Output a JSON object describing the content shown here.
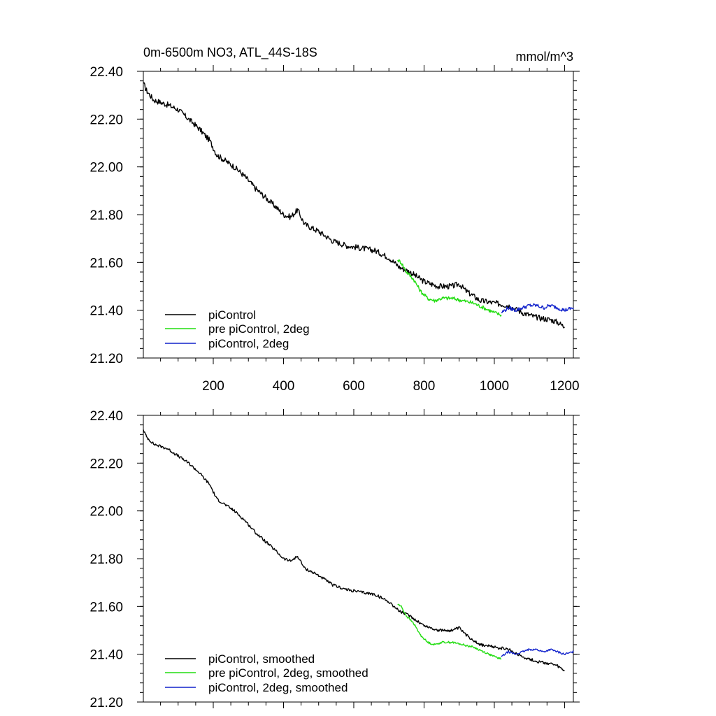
{
  "chart_data": [
    {
      "type": "line",
      "title": "0m-6500m NO3, ATL_44S-18S",
      "units": "mmol/m^3",
      "xlim": [
        1,
        1225
      ],
      "ylim": [
        21.2,
        22.4
      ],
      "x_ticks": [
        200,
        400,
        600,
        800,
        1000,
        1200
      ],
      "x_tick_labels": [
        "200",
        "400",
        "600",
        "800",
        "1000",
        "1200"
      ],
      "y_ticks": [
        21.2,
        21.4,
        21.6,
        21.8,
        22.0,
        22.2,
        22.4
      ],
      "y_tick_labels": [
        "21.20",
        "21.40",
        "21.60",
        "21.80",
        "22.00",
        "22.20",
        "22.40"
      ],
      "legend_position": "bottom-left",
      "series": [
        {
          "name": "piControl",
          "color": "#000000",
          "noise": 0.012,
          "x": [
            1,
            10,
            30,
            50,
            70,
            100,
            130,
            160,
            190,
            210,
            230,
            260,
            290,
            320,
            350,
            380,
            400,
            420,
            440,
            460,
            500,
            540,
            580,
            620,
            660,
            700,
            730,
            760,
            800,
            840,
            880,
            900,
            920,
            960,
            1000,
            1040,
            1080,
            1120,
            1160,
            1180,
            1200
          ],
          "y": [
            22.35,
            22.32,
            22.28,
            22.27,
            22.26,
            22.24,
            22.2,
            22.16,
            22.11,
            22.05,
            22.03,
            22.0,
            21.96,
            21.91,
            21.87,
            21.83,
            21.8,
            21.79,
            21.82,
            21.76,
            21.73,
            21.69,
            21.67,
            21.66,
            21.65,
            21.62,
            21.58,
            21.56,
            21.52,
            21.5,
            21.5,
            21.51,
            21.48,
            21.44,
            21.43,
            21.42,
            21.39,
            21.37,
            21.36,
            21.35,
            21.33
          ]
        },
        {
          "name": "pre piControl, 2deg",
          "color": "#22dd11",
          "noise": 0.008,
          "x": [
            725,
            735,
            750,
            770,
            790,
            810,
            830,
            850,
            880,
            910,
            940,
            970,
            1000,
            1020
          ],
          "y": [
            21.61,
            21.6,
            21.56,
            21.53,
            21.48,
            21.45,
            21.44,
            21.45,
            21.45,
            21.44,
            21.43,
            21.41,
            21.39,
            21.38
          ]
        },
        {
          "name": "piControl, 2deg",
          "color": "#1122cc",
          "noise": 0.008,
          "x": [
            1020,
            1040,
            1060,
            1080,
            1100,
            1120,
            1140,
            1160,
            1180,
            1200,
            1225
          ],
          "y": [
            21.39,
            21.41,
            21.4,
            21.41,
            21.42,
            21.42,
            21.41,
            21.42,
            21.41,
            21.4,
            21.41
          ]
        }
      ]
    },
    {
      "type": "line",
      "xlim": [
        1,
        1225
      ],
      "ylim": [
        21.2,
        22.4
      ],
      "x_ticks": [
        200,
        400,
        600,
        800,
        1000,
        1200
      ],
      "y_ticks": [
        21.2,
        21.4,
        21.6,
        21.8,
        22.0,
        22.2,
        22.4
      ],
      "y_tick_labels": [
        "21.20",
        "21.40",
        "21.60",
        "21.80",
        "22.00",
        "22.20",
        "22.40"
      ],
      "legend_position": "bottom-left",
      "series": [
        {
          "name": "piControl, smoothed",
          "color": "#000000",
          "noise": 0.006,
          "x": [
            1,
            10,
            30,
            50,
            70,
            100,
            130,
            160,
            190,
            210,
            230,
            260,
            290,
            320,
            350,
            380,
            400,
            420,
            440,
            460,
            500,
            540,
            580,
            620,
            660,
            700,
            730,
            760,
            800,
            840,
            880,
            900,
            920,
            960,
            1000,
            1040,
            1080,
            1120,
            1160,
            1180,
            1200
          ],
          "y": [
            22.34,
            22.31,
            22.28,
            22.27,
            22.26,
            22.23,
            22.2,
            22.16,
            22.11,
            22.05,
            22.03,
            22.0,
            21.96,
            21.91,
            21.87,
            21.83,
            21.8,
            21.79,
            21.81,
            21.76,
            21.73,
            21.69,
            21.67,
            21.66,
            21.65,
            21.62,
            21.58,
            21.56,
            21.52,
            21.5,
            21.5,
            21.51,
            21.48,
            21.44,
            21.43,
            21.42,
            21.39,
            21.37,
            21.36,
            21.35,
            21.33
          ]
        },
        {
          "name": "pre piControl, 2deg, smoothed",
          "color": "#22dd11",
          "noise": 0.004,
          "x": [
            725,
            735,
            750,
            770,
            790,
            810,
            830,
            850,
            880,
            910,
            940,
            970,
            1000,
            1020
          ],
          "y": [
            21.61,
            21.6,
            21.56,
            21.53,
            21.48,
            21.45,
            21.44,
            21.45,
            21.45,
            21.44,
            21.43,
            21.41,
            21.39,
            21.38
          ]
        },
        {
          "name": "piControl, 2deg, smoothed",
          "color": "#1122cc",
          "noise": 0.004,
          "x": [
            1020,
            1040,
            1060,
            1080,
            1100,
            1120,
            1140,
            1160,
            1180,
            1200,
            1225
          ],
          "y": [
            21.39,
            21.41,
            21.4,
            21.41,
            21.42,
            21.42,
            21.41,
            21.42,
            21.41,
            21.4,
            21.41
          ]
        }
      ]
    }
  ]
}
